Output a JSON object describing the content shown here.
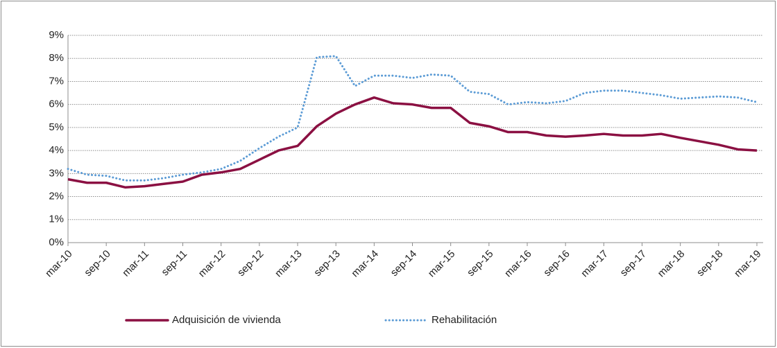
{
  "chart_data": {
    "type": "line",
    "categories": [
      "mar-10",
      null,
      "sep-10",
      null,
      "mar-11",
      null,
      "sep-11",
      null,
      "mar-12",
      null,
      "sep-12",
      null,
      "mar-13",
      null,
      "sep-13",
      null,
      "mar-14",
      null,
      "sep-14",
      null,
      "mar-15",
      null,
      "sep-15",
      null,
      "mar-16",
      null,
      "sep-16",
      null,
      "mar-17",
      null,
      "sep-17",
      null,
      "mar-18",
      null,
      "sep-18",
      null,
      "mar-19"
    ],
    "series": [
      {
        "name": "Adquisición de vivienda",
        "color": "#8b1042",
        "style": "solid",
        "values": [
          2.75,
          2.6,
          2.6,
          2.4,
          2.45,
          2.55,
          2.65,
          2.95,
          3.05,
          3.2,
          3.6,
          4.0,
          4.2,
          5.05,
          5.6,
          6.0,
          6.3,
          6.05,
          6.0,
          5.85,
          5.85,
          5.2,
          5.05,
          4.8,
          4.8,
          4.65,
          4.6,
          4.65,
          4.72,
          4.65,
          4.65,
          4.72,
          4.55,
          4.4,
          4.25,
          4.05,
          4.0
        ]
      },
      {
        "name": "Rehabilitación",
        "color": "#5b9bd5",
        "style": "dotted",
        "values": [
          3.2,
          2.95,
          2.9,
          2.7,
          2.7,
          2.8,
          2.95,
          3.05,
          3.2,
          3.55,
          4.1,
          4.6,
          5.0,
          8.05,
          8.1,
          6.8,
          7.25,
          7.25,
          7.15,
          7.3,
          7.25,
          6.55,
          6.45,
          6.0,
          6.1,
          6.05,
          6.15,
          6.5,
          6.6,
          6.6,
          6.5,
          6.4,
          6.25,
          6.3,
          6.35,
          6.3,
          6.1
        ]
      }
    ],
    "ylim": [
      0,
      9
    ],
    "yticks": [
      {
        "value": 0,
        "label": "0%"
      },
      {
        "value": 1,
        "label": "1%"
      },
      {
        "value": 2,
        "label": "2%"
      },
      {
        "value": 3,
        "label": "3%"
      },
      {
        "value": 4,
        "label": "4%"
      },
      {
        "value": 5,
        "label": "5%"
      },
      {
        "value": 6,
        "label": "6%"
      },
      {
        "value": 7,
        "label": "7%"
      },
      {
        "value": 8,
        "label": "8%"
      },
      {
        "value": 9,
        "label": "9%"
      }
    ],
    "grid": true,
    "legend": "bottom"
  }
}
